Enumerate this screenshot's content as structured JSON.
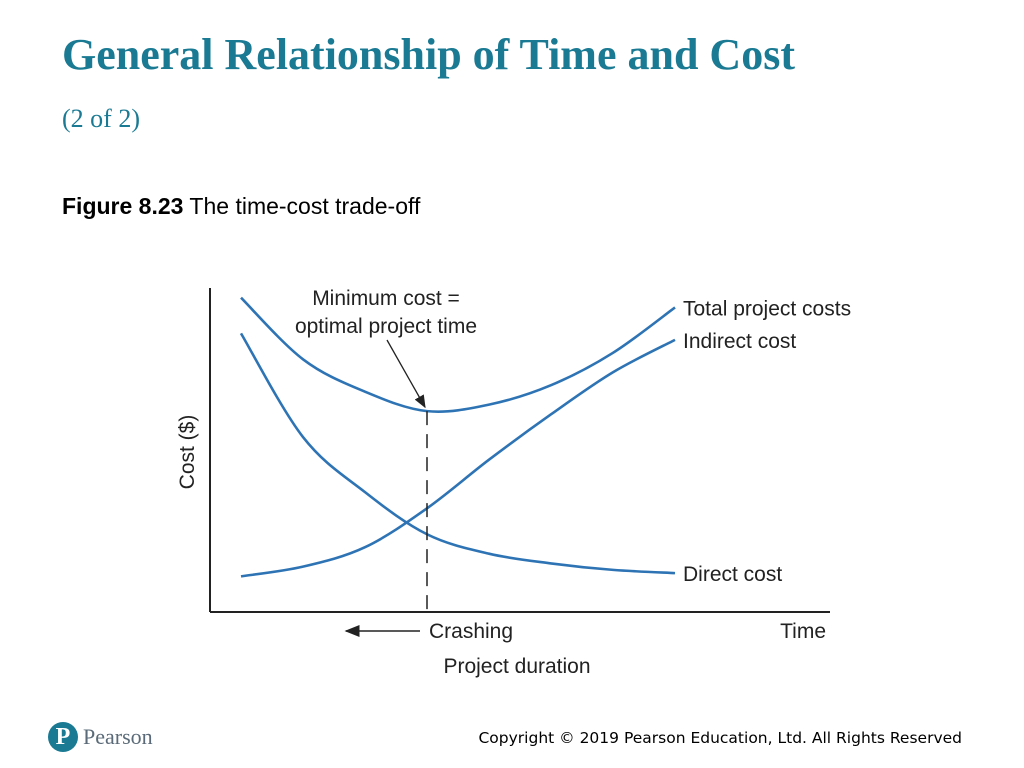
{
  "slide": {
    "title": "General Relationship of Time and Cost",
    "title_suffix": "(2 of 2)",
    "figure_number": "Figure 8.23",
    "figure_caption": "The time-cost trade-off"
  },
  "footer": {
    "logo_letter": "P",
    "logo_text": "Pearson",
    "copyright": "Copyright © 2019 Pearson Education, Ltd. All Rights Reserved"
  },
  "chart_data": {
    "type": "line",
    "title": "",
    "xlabel": "Time",
    "ylabel": "Cost ($)",
    "x_note": "Project duration",
    "xlim": [
      0,
      10
    ],
    "ylim": [
      0,
      10
    ],
    "grid": false,
    "series": [
      {
        "name": "Total project costs",
        "color": "#2e74b5",
        "x": [
          0.5,
          1.5,
          2.5,
          3.5,
          4.5,
          5.5,
          6.5,
          7.5
        ],
        "values": [
          9.7,
          7.8,
          6.8,
          6.2,
          6.4,
          7.0,
          8.0,
          9.4
        ]
      },
      {
        "name": "Indirect cost",
        "color": "#2e74b5",
        "x": [
          0.5,
          1.5,
          2.5,
          3.5,
          4.5,
          5.5,
          6.5,
          7.5
        ],
        "values": [
          1.1,
          1.4,
          2.0,
          3.2,
          4.7,
          6.1,
          7.4,
          8.4
        ]
      },
      {
        "name": "Direct cost",
        "color": "#2e74b5",
        "x": [
          0.5,
          1.5,
          2.5,
          3.5,
          4.5,
          5.5,
          6.5,
          7.5
        ],
        "values": [
          8.6,
          5.4,
          3.7,
          2.4,
          1.8,
          1.5,
          1.3,
          1.2
        ]
      }
    ],
    "optimum_x": 3.5,
    "annotations": {
      "min_line1": "Minimum cost =",
      "min_line2": "optimal project time",
      "crashing": "Crashing"
    }
  }
}
